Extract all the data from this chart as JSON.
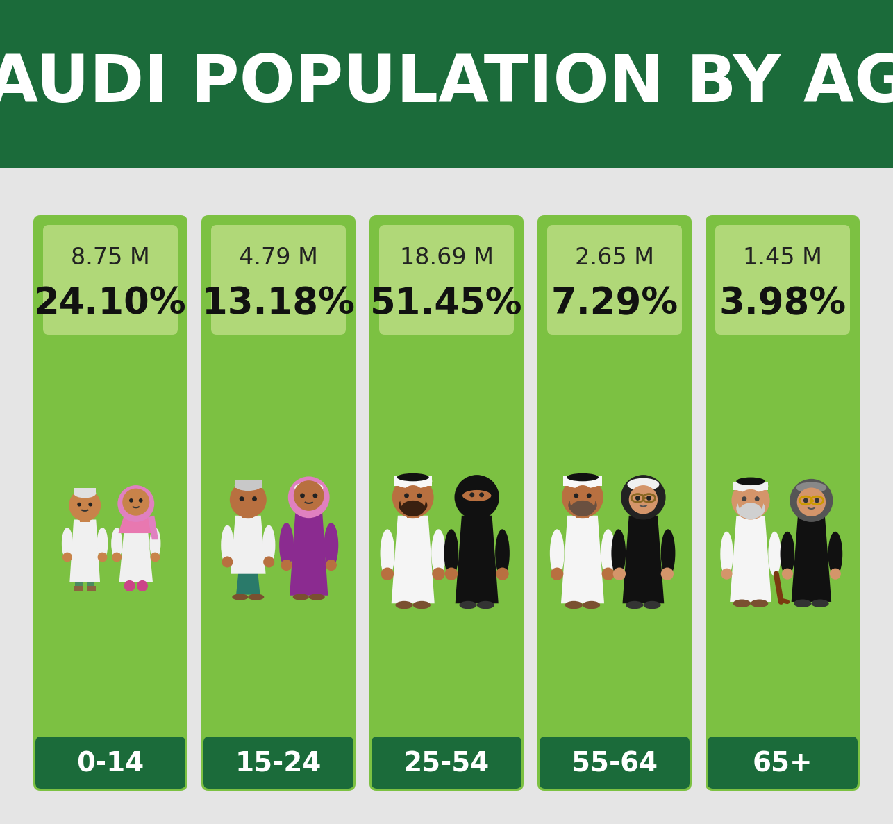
{
  "title": "SAUDI POPULATION BY AGE",
  "title_bg_color": "#1b6b3a",
  "title_text_color": "#ffffff",
  "background_color": "#e5e5e5",
  "light_green": "#7cc142",
  "dark_green": "#1b6b3a",
  "stat_box_color": "#b0d878",
  "categories": [
    "0-14",
    "15-24",
    "25-54",
    "55-64",
    "65+"
  ],
  "millions": [
    "8.75 M",
    "4.79 M",
    "18.69 M",
    "2.65 M",
    "1.45 M"
  ],
  "percentages": [
    "24.10%",
    "13.18%",
    "51.45%",
    "7.29%",
    "3.98%"
  ],
  "skin_brown": "#c8834a",
  "skin_light": "#d4956a",
  "skin_tan": "#b87040",
  "white": "#f0f0f0",
  "teal": "#2a6e7a",
  "pink": "#e878b0",
  "pink_hijab": "#e080c0",
  "purple": "#8b2d8b",
  "black": "#111111",
  "gray_hijab": "#555555",
  "white_keffiyeh": "#f5f5f5",
  "beard_dark": "#3a2010",
  "beard_gray": "#aaaaaa",
  "beard_white": "#dddddd",
  "cane_brown": "#7a3a10"
}
